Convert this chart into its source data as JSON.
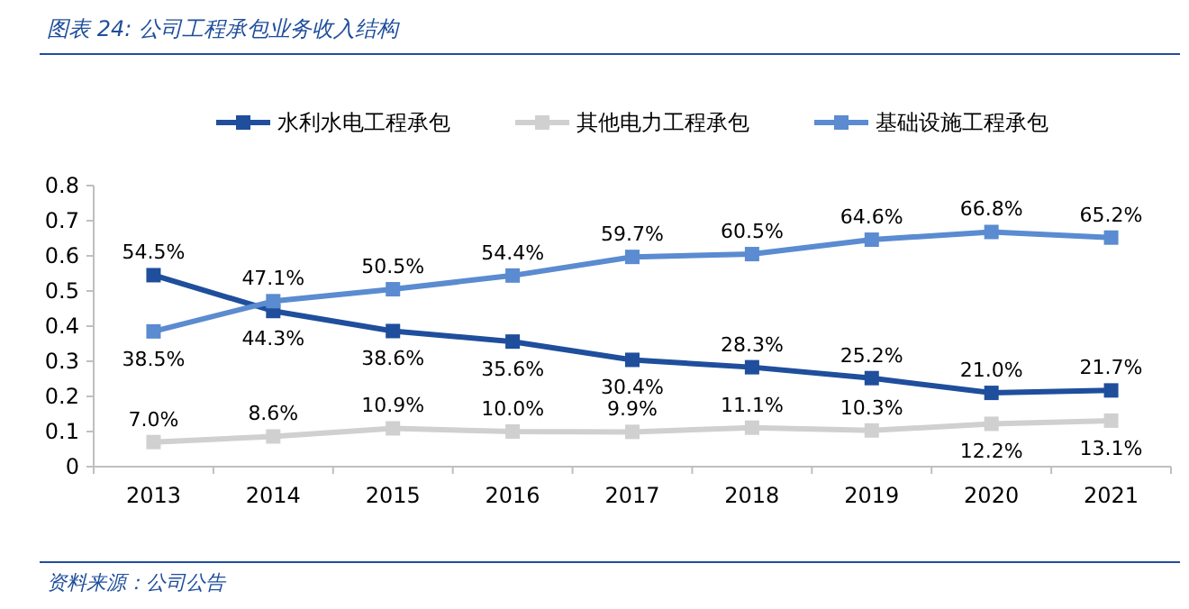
{
  "chart_data": {
    "type": "line",
    "title": "图表 24: 公司工程承包业务收入结构",
    "annotations": [
      "资料来源：公司公告"
    ],
    "categories": [
      "2013",
      "2014",
      "2015",
      "2016",
      "2017",
      "2018",
      "2019",
      "2020",
      "2021"
    ],
    "ylim": [
      0,
      0.8
    ],
    "yticks": [
      0,
      0.1,
      0.2,
      0.3,
      0.4,
      0.5,
      0.6,
      0.7,
      0.8
    ],
    "grid": false,
    "legend": "top",
    "marker": "square",
    "line_style": "solid",
    "series": [
      {
        "name": "水利水电工程承包",
        "color": "#1f4e9c",
        "values": [
          0.545,
          0.443,
          0.386,
          0.356,
          0.304,
          0.283,
          0.252,
          0.21,
          0.217
        ],
        "value_labels": [
          "54.5%",
          "44.3%",
          "38.6%",
          "35.6%",
          "30.4%",
          "28.3%",
          "25.2%",
          "21.0%",
          "21.7%"
        ]
      },
      {
        "name": "其他电力工程承包",
        "color": "#d0d0d0",
        "values": [
          0.07,
          0.086,
          0.109,
          0.1,
          0.099,
          0.111,
          0.103,
          0.122,
          0.131
        ],
        "value_labels": [
          "7.0%",
          "8.6%",
          "10.9%",
          "10.0%",
          "9.9%",
          "11.1%",
          "10.3%",
          "12.2%",
          "13.1%"
        ]
      },
      {
        "name": "基础设施工程承包",
        "color": "#5b8bd0",
        "values": [
          0.385,
          0.471,
          0.505,
          0.544,
          0.597,
          0.605,
          0.646,
          0.668,
          0.652
        ],
        "value_labels": [
          "38.5%",
          "47.1%",
          "50.5%",
          "54.4%",
          "59.7%",
          "60.5%",
          "64.6%",
          "66.8%",
          "65.2%"
        ]
      }
    ]
  }
}
